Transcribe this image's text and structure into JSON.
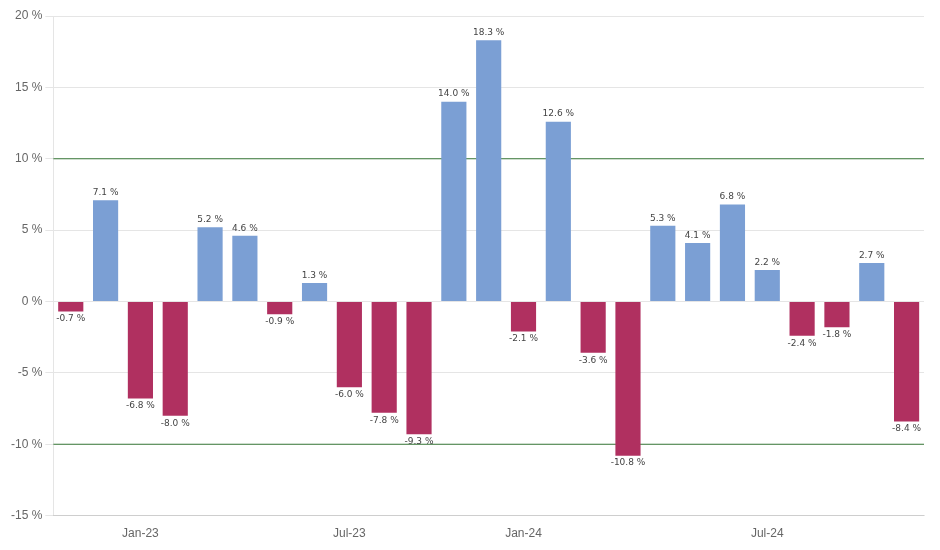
{
  "chart_data": {
    "type": "bar",
    "categories": [
      null,
      null,
      "Jan-23",
      null,
      null,
      null,
      null,
      null,
      "Jul-23",
      null,
      null,
      null,
      null,
      "Jan-24",
      null,
      null,
      null,
      null,
      null,
      null,
      "Jul-24",
      null,
      null,
      null,
      null
    ],
    "values": [
      -0.7,
      7.1,
      -6.8,
      -8.0,
      5.2,
      4.6,
      -0.9,
      1.3,
      -6.0,
      -7.8,
      -9.3,
      14.0,
      18.3,
      -2.1,
      12.6,
      -3.6,
      -10.8,
      5.3,
      4.1,
      6.8,
      2.2,
      -2.4,
      -1.8,
      2.7,
      -8.4
    ],
    "value_labels": [
      "-0.7 %",
      "7.1 %",
      "-6.8 %",
      "-8.0 %",
      "5.2 %",
      "4.6 %",
      "-0.9 %",
      "1.3 %",
      "-6.0 %",
      "-7.8 %",
      "-9.3 %",
      "14.0 %",
      "18.3 %",
      "-2.1 %",
      "12.6 %",
      "-3.6 %",
      "-10.8 %",
      "5.3 %",
      "4.1 %",
      "6.8 %",
      "2.2 %",
      "-2.4 %",
      "-1.8 %",
      "2.7 %",
      "-8.4 %"
    ],
    "colors": [
      "#b03060",
      "#7b9fd4",
      "#b03060",
      "#b03060",
      "#7b9fd4",
      "#7b9fd4",
      "#b03060",
      "#7b9fd4",
      "#b03060",
      "#b03060",
      "#b03060",
      "#7b9fd4",
      "#7b9fd4",
      "#b03060",
      "#7b9fd4",
      "#b03060",
      "#b03060",
      "#7b9fd4",
      "#7b9fd4",
      "#7b9fd4",
      "#7b9fd4",
      "#b03060",
      "#b03060",
      "#7b9fd4",
      "#b03060"
    ],
    "ylim": [
      -15,
      20
    ],
    "yticks": [
      {
        "value": -15,
        "label": "-15 %"
      },
      {
        "value": -10,
        "label": "-10 %"
      },
      {
        "value": -5,
        "label": "-5 %"
      },
      {
        "value": 0,
        "label": "0 %"
      },
      {
        "value": 5,
        "label": "5 %"
      },
      {
        "value": 10,
        "label": "10 %"
      },
      {
        "value": 15,
        "label": "15 %"
      },
      {
        "value": 20,
        "label": "20 %"
      }
    ],
    "reference_lines": [
      {
        "value": 10.0,
        "color": "#3a7a3a"
      },
      {
        "value": -10.0,
        "color": "#3a7a3a"
      }
    ],
    "grid": true,
    "data_labels": true
  }
}
